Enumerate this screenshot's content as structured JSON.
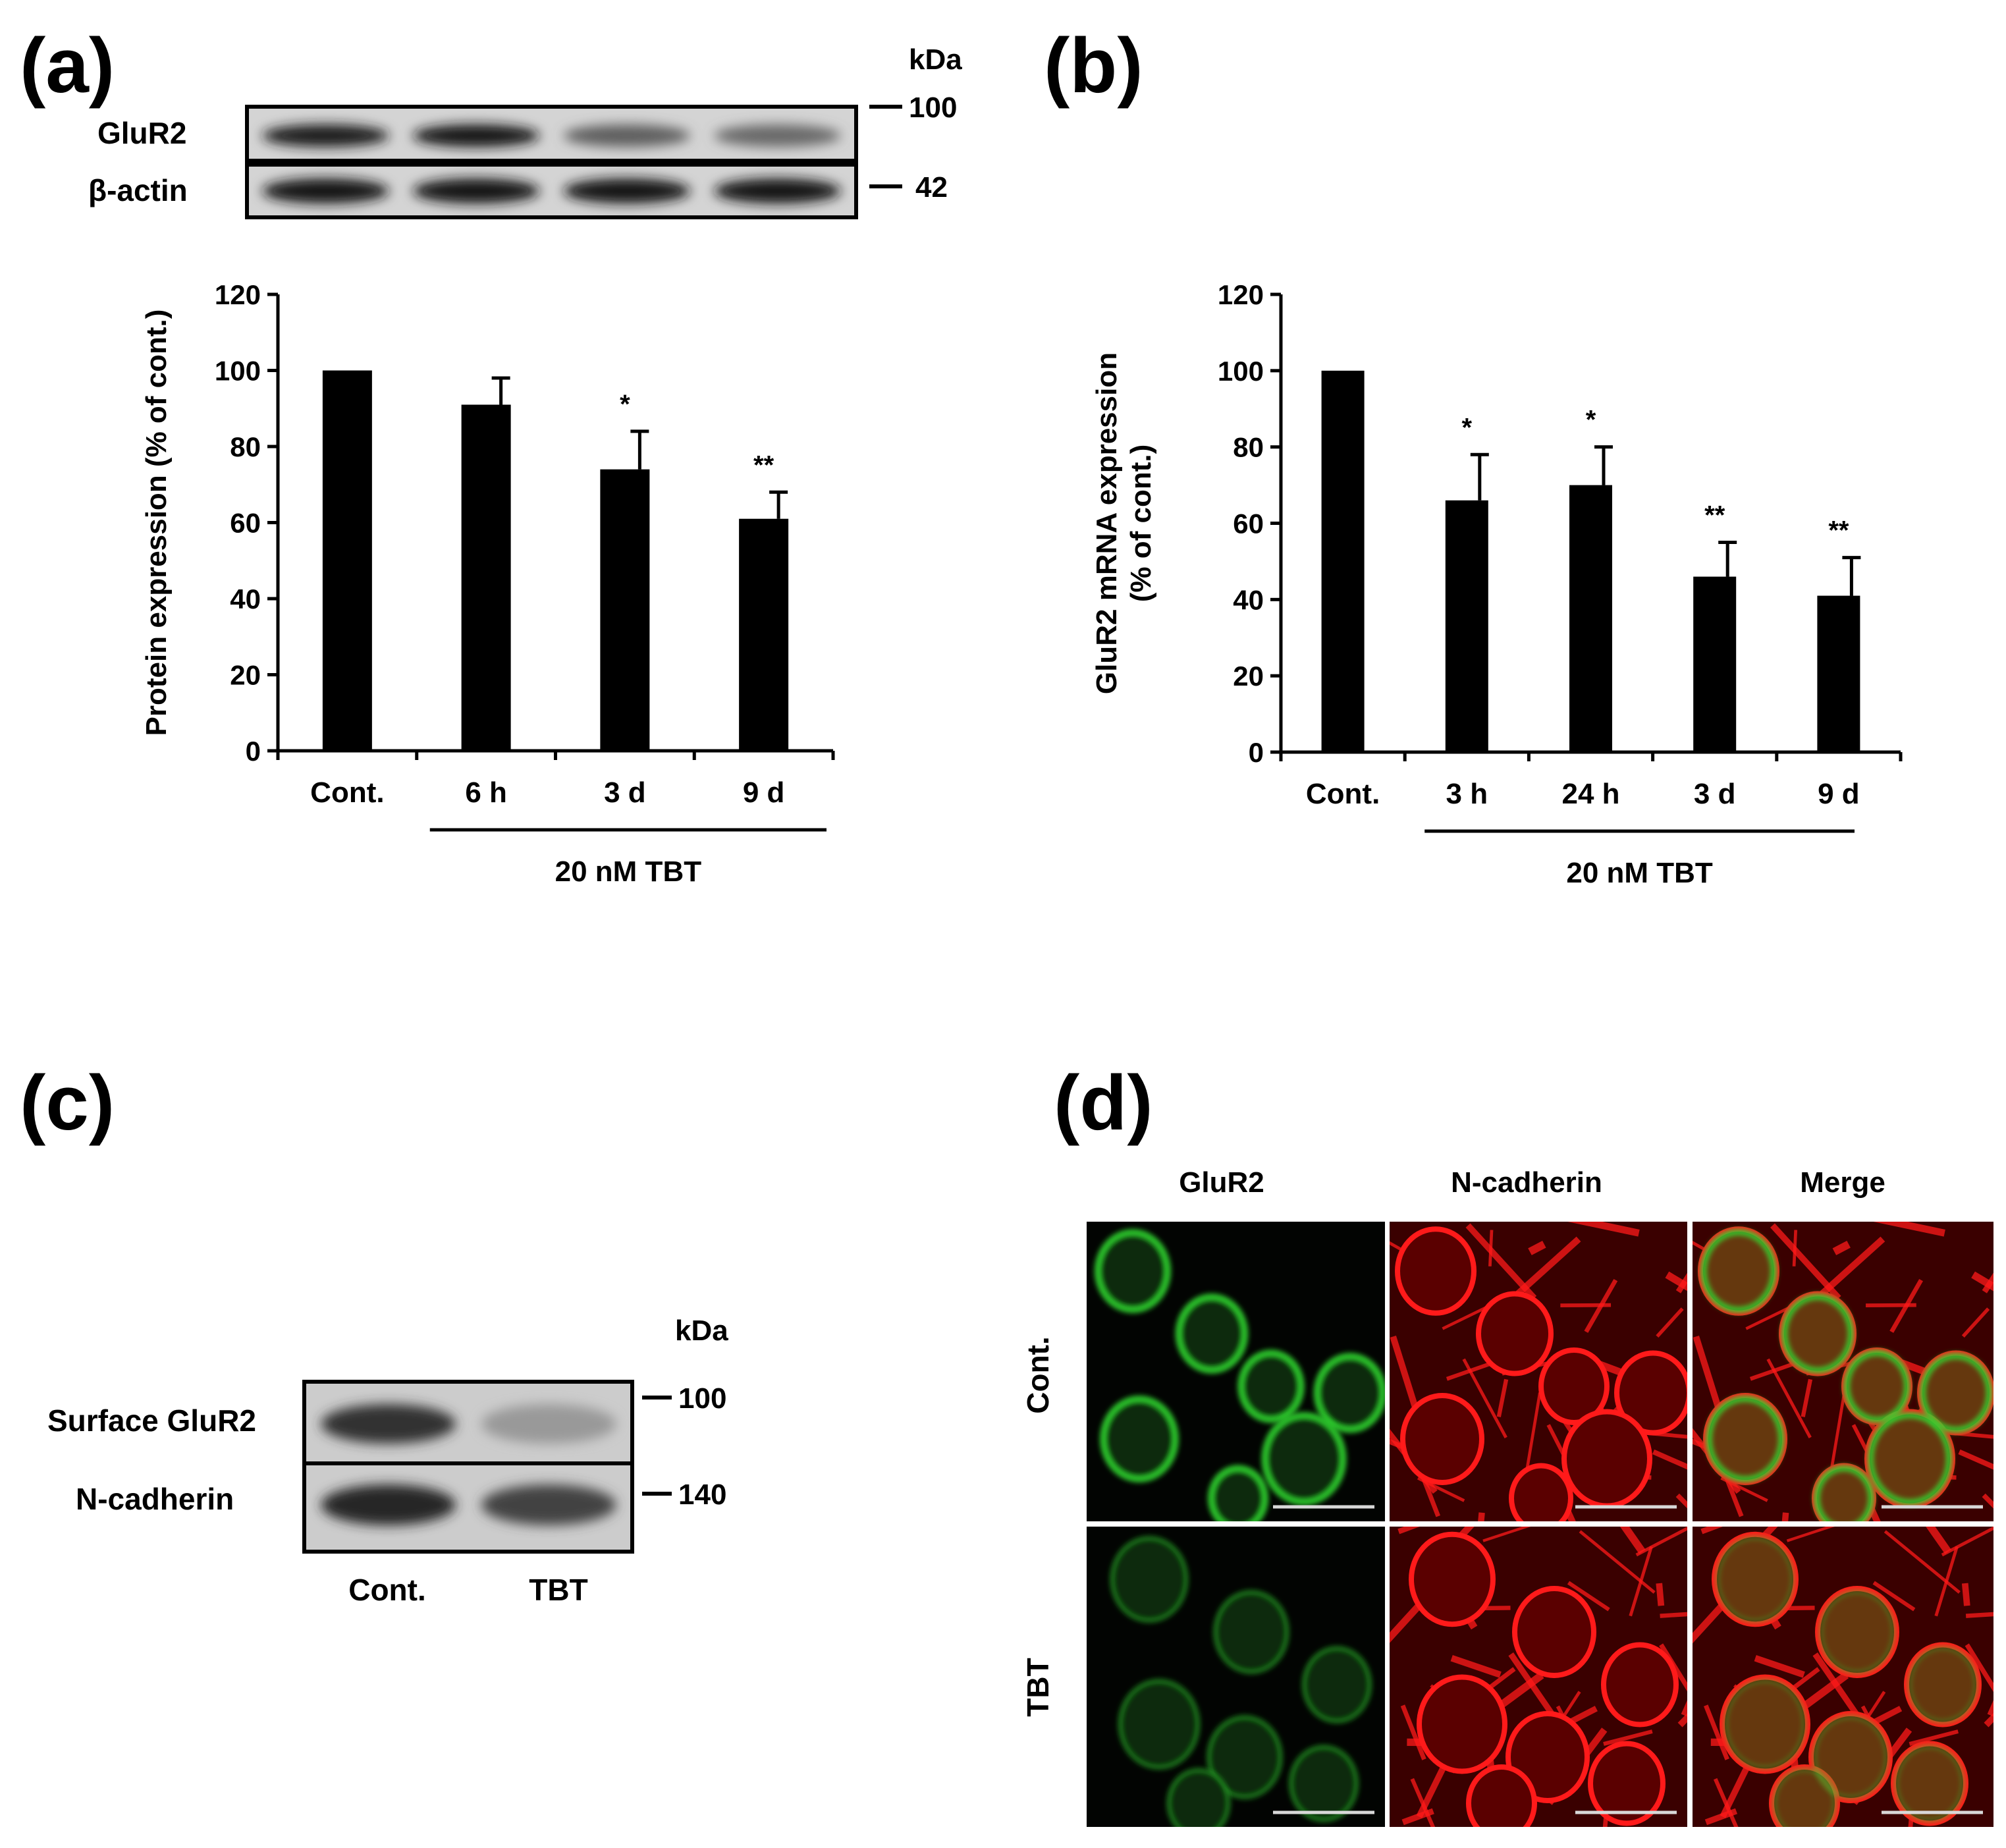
{
  "panels": {
    "a": {
      "label": "(a)",
      "blot": {
        "kda_label": "kDa",
        "rows": [
          {
            "name": "GluR2",
            "marker": "100",
            "intensities": [
              0.9,
              0.95,
              0.55,
              0.5
            ]
          },
          {
            "name": "β-actin",
            "marker": "42",
            "intensities": [
              0.95,
              0.95,
              0.95,
              0.95
            ]
          }
        ]
      },
      "chart_data": {
        "type": "bar",
        "categories": [
          "Cont.",
          "6 h",
          "3 d",
          "9 d"
        ],
        "values": [
          100,
          91,
          74,
          61
        ],
        "errors": [
          0,
          7,
          10,
          7
        ],
        "significance": [
          "",
          "",
          "*",
          "**"
        ],
        "ylabel": "Protein expression (% of cont.)",
        "ylim": [
          0,
          120
        ],
        "yticks": [
          0,
          20,
          40,
          60,
          80,
          100,
          120
        ],
        "group_label": "20 nM TBT",
        "group_categories": [
          "6 h",
          "3 d",
          "9 d"
        ],
        "bar_color": "#000000"
      }
    },
    "b": {
      "label": "(b)",
      "chart_data": {
        "type": "bar",
        "categories": [
          "Cont.",
          "3 h",
          "24 h",
          "3 d",
          "9 d"
        ],
        "values": [
          100,
          66,
          70,
          46,
          41
        ],
        "errors": [
          0,
          12,
          10,
          9,
          10
        ],
        "significance": [
          "",
          "*",
          "*",
          "**",
          "**"
        ],
        "ylabel_lines": [
          "GluR2 mRNA expression",
          "(% of cont.)"
        ],
        "ylim": [
          0,
          120
        ],
        "yticks": [
          0,
          20,
          40,
          60,
          80,
          100,
          120
        ],
        "group_label": "20 nM TBT",
        "group_categories": [
          "3 h",
          "24 h",
          "3 d",
          "9 d"
        ],
        "bar_color": "#000000"
      }
    },
    "c": {
      "label": "(c)",
      "blot": {
        "kda_label": "kDa",
        "rows": [
          {
            "name": "Surface GluR2",
            "marker": "100",
            "intensities": [
              0.8,
              0.25
            ]
          },
          {
            "name": "N-cadherin",
            "marker": "140",
            "intensities": [
              0.85,
              0.7
            ]
          }
        ],
        "lanes": [
          "Cont.",
          "TBT"
        ]
      }
    },
    "d": {
      "label": "(d)",
      "columns": [
        "GluR2",
        "N-cadherin",
        "Merge"
      ],
      "rows": [
        "Cont.",
        "TBT"
      ],
      "colors": {
        "green": "#2fd62f",
        "red": "#ff1a1a",
        "background": "#050000"
      }
    }
  }
}
